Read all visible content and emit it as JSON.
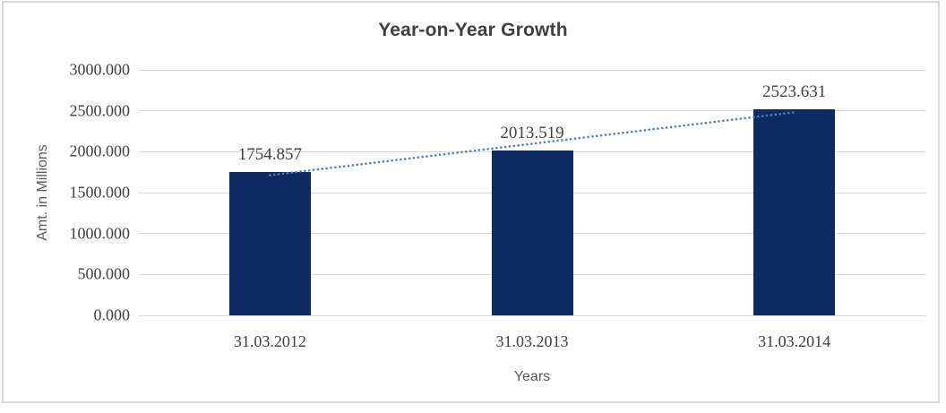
{
  "chart_data": {
    "type": "bar",
    "title": "Year-on-Year Growth",
    "xlabel": "Years",
    "ylabel": "Amt. in Millions",
    "categories": [
      "31.03.2012",
      "31.03.2013",
      "31.03.2014"
    ],
    "values": [
      1754.857,
      2013.519,
      2523.631
    ],
    "data_labels": [
      "1754.857",
      "2013.519",
      "2523.631"
    ],
    "ylim": [
      0,
      3000
    ],
    "ytick_step": 500,
    "ytick_labels": [
      "3000.000",
      "2500.000",
      "2000.000",
      "1500.000",
      "1000.000",
      "500.000",
      "0.000"
    ],
    "grid": true,
    "legend": false,
    "trendline": {
      "type": "linear",
      "style": "dotted",
      "color": "#4f81bd"
    },
    "colors": {
      "bar": "#0d2a63",
      "gridline": "#d9d9d9",
      "tick_text": "#404040",
      "axis_title_text": "#595959",
      "title_text": "#404040",
      "frame": "#d9d9d9",
      "background": "#ffffff"
    }
  }
}
